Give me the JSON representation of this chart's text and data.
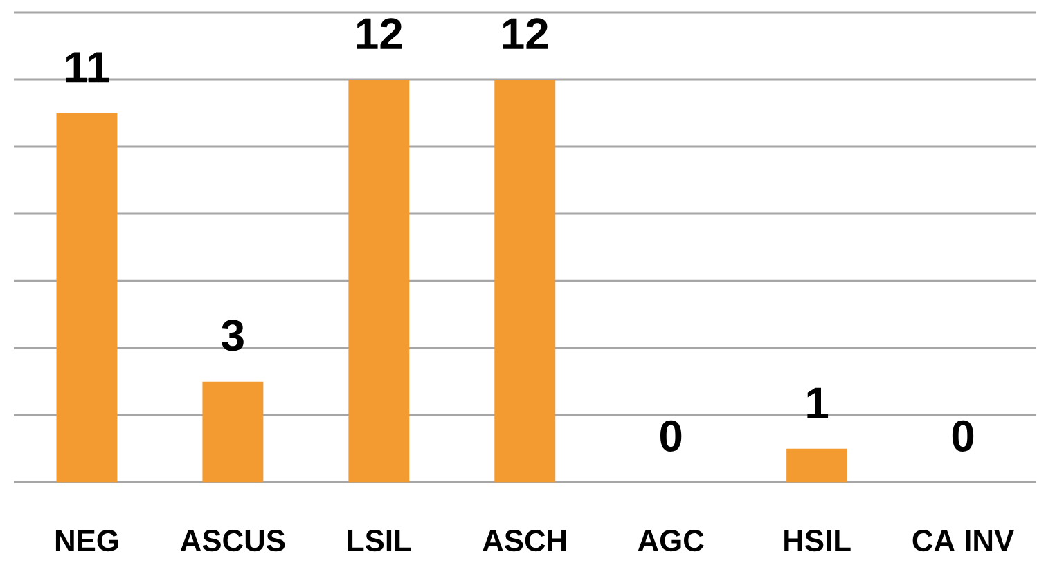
{
  "chart_data": {
    "type": "bar",
    "categories": [
      "NEG",
      "ASCUS",
      "LSIL",
      "ASCH",
      "AGC",
      "HSIL",
      "CA INV"
    ],
    "values": [
      11,
      3,
      12,
      12,
      0,
      1,
      0
    ],
    "color": "#f39a30",
    "ylim": [
      0,
      14
    ],
    "yticks": [
      {
        "value": 0,
        "label": null
      },
      {
        "value": 2,
        "label": null
      },
      {
        "value": 4,
        "label": null
      },
      {
        "value": 6,
        "label": null
      },
      {
        "value": 8,
        "label": null
      },
      {
        "value": 10,
        "label": null
      },
      {
        "value": 12,
        "label": null
      },
      {
        "value": 14,
        "label": null
      }
    ],
    "grid": "y",
    "data_labels": true,
    "tick_labels": "x"
  }
}
